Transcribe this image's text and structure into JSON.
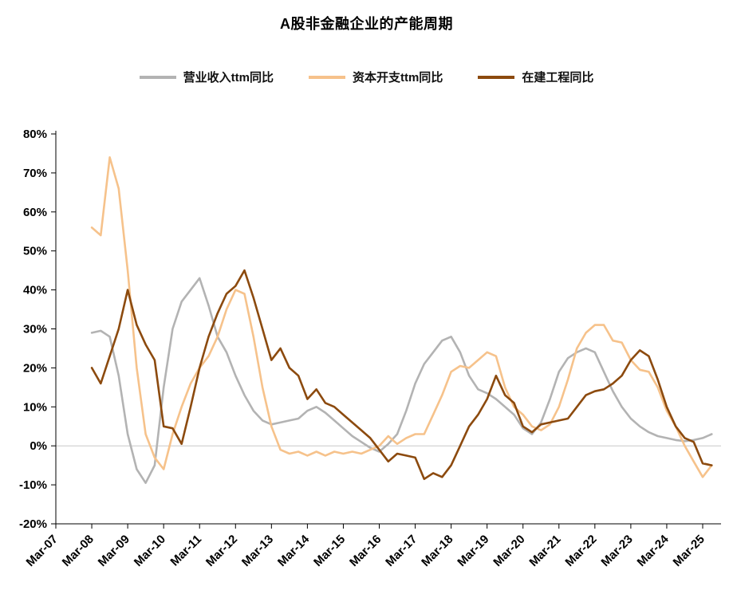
{
  "title": "A股非金融企业的产能周期",
  "legend": [
    {
      "label": "营业收入ttm同比",
      "color": "#b3b3b3"
    },
    {
      "label": "资本开支ttm同比",
      "color": "#f6c28b"
    },
    {
      "label": "在建工程同比",
      "color": "#8c4a0e"
    }
  ],
  "chart_data": {
    "type": "line",
    "title": "A股非金融企业的产能周期",
    "xlabel": "",
    "ylabel": "",
    "ylim": [
      -20,
      80
    ],
    "y_ticks": [
      80,
      70,
      60,
      50,
      40,
      30,
      20,
      10,
      0,
      -10,
      -20
    ],
    "y_tick_labels": [
      "80%",
      "70%",
      "60%",
      "50%",
      "40%",
      "30%",
      "20%",
      "10%",
      "0%",
      "-10%",
      "-20%"
    ],
    "x_tick_labels": [
      "Mar-07",
      "Mar-08",
      "Mar-09",
      "Mar-10",
      "Mar-11",
      "Mar-12",
      "Mar-13",
      "Mar-14",
      "Mar-15",
      "Mar-16",
      "Mar-17",
      "Mar-18",
      "Mar-19",
      "Mar-20",
      "Mar-21",
      "Mar-22",
      "Mar-23",
      "Mar-24",
      "Mar-25"
    ],
    "frequency": "quarterly",
    "series_start_year_offset": 1.0,
    "quarter_step_years": 0.25,
    "grid": "zero-line-only",
    "legend_position": "top",
    "series": [
      {
        "name": "营业收入ttm同比",
        "color": "#b3b3b3",
        "values": [
          29,
          29.5,
          28,
          18,
          3,
          -6,
          -9.5,
          -5,
          15,
          30,
          37,
          40,
          43,
          36,
          28,
          24,
          18,
          13,
          9,
          6.5,
          5.5,
          6,
          6.5,
          7,
          9,
          10,
          8.5,
          6.5,
          4.5,
          2.5,
          1,
          -0.5,
          -1.5,
          0.5,
          3,
          9,
          16,
          21,
          24,
          27,
          28,
          24,
          18,
          14.5,
          13.5,
          12,
          10,
          8,
          4.5,
          3,
          6,
          12,
          19,
          22.5,
          24,
          25,
          24,
          19,
          14,
          10,
          7,
          5,
          3.5,
          2.5,
          2,
          1.5,
          1.2,
          1.5,
          2,
          3
        ]
      },
      {
        "name": "资本开支ttm同比",
        "color": "#f6c28b",
        "values": [
          56,
          54,
          74,
          66,
          45,
          20,
          3,
          -3,
          -6,
          3,
          10,
          16,
          20,
          23,
          28,
          35,
          40,
          39,
          28,
          15,
          5,
          -1,
          -2,
          -1.5,
          -2.5,
          -1.5,
          -2.5,
          -1.5,
          -2,
          -1.5,
          -2,
          -1,
          0,
          2.5,
          0.5,
          2,
          3,
          3,
          8,
          13,
          19,
          20.5,
          20,
          22,
          24,
          23,
          15,
          10,
          8,
          5,
          4,
          5.5,
          10,
          17,
          25,
          29,
          31,
          31,
          27,
          26.5,
          22,
          19.5,
          19,
          15,
          9,
          5,
          0,
          -4,
          -8,
          -5
        ]
      },
      {
        "name": "在建工程同比",
        "color": "#8c4a0e",
        "values": [
          20,
          16,
          23,
          30,
          40,
          31,
          26,
          22,
          5,
          4.5,
          0.5,
          10,
          20,
          28,
          34,
          39,
          41,
          45,
          38,
          30,
          22,
          25,
          20,
          18,
          12,
          14.5,
          11,
          10,
          8,
          6,
          4,
          2,
          -1,
          -4,
          -2,
          -2.5,
          -3,
          -8.5,
          -7,
          -8,
          -5,
          0,
          5,
          8,
          12,
          18,
          13,
          11,
          5,
          3.5,
          5.5,
          6,
          6.5,
          7,
          10,
          13,
          14,
          14.5,
          16,
          18,
          22,
          24.5,
          23,
          17,
          10,
          5,
          2,
          1,
          -4.5,
          -5
        ]
      }
    ]
  }
}
